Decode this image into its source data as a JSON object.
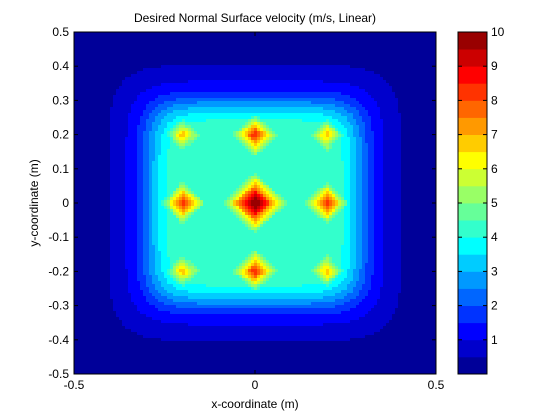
{
  "chart_data": {
    "type": "heatmap",
    "subtype": "filled-contour",
    "title": "Desired Normal Surface velocity (m/s, Linear)",
    "xlabel": "x-coordinate (m)",
    "ylabel": "y-coordinate (m)",
    "xlim": [
      -0.5,
      0.5
    ],
    "ylim": [
      -0.5,
      0.5
    ],
    "xticks": [
      -0.5,
      0,
      0.5
    ],
    "xtick_labels": [
      "-0.5",
      "0",
      "0.5"
    ],
    "yticks": [
      -0.5,
      -0.4,
      -0.3,
      -0.2,
      -0.1,
      0,
      0.1,
      0.2,
      0.3,
      0.4,
      0.5
    ],
    "ytick_labels": [
      "-0.5",
      "-0.4",
      "-0.3",
      "-0.2",
      "-0.1",
      "0",
      "0.1",
      "0.2",
      "0.3",
      "0.4",
      "0.5"
    ],
    "colorbar": {
      "clim": [
        0,
        10
      ],
      "ticks": [
        1,
        2,
        3,
        4,
        5,
        6,
        7,
        8,
        9,
        10
      ],
      "tick_labels": [
        "1",
        "2",
        "3",
        "4",
        "5",
        "6",
        "7",
        "8",
        "9",
        "10"
      ],
      "levels": 20,
      "colormap": "jet"
    },
    "grid": false,
    "peaks": [
      {
        "x": 0,
        "y": 0,
        "value": 10
      },
      {
        "x": -0.2,
        "y": 0,
        "value": 8
      },
      {
        "x": 0.2,
        "y": 0,
        "value": 8
      },
      {
        "x": 0,
        "y": 0.2,
        "value": 8
      },
      {
        "x": 0,
        "y": -0.2,
        "value": 8
      },
      {
        "x": -0.2,
        "y": 0.2,
        "value": 6.5
      },
      {
        "x": 0.2,
        "y": 0.2,
        "value": 6.5
      },
      {
        "x": -0.2,
        "y": -0.2,
        "value": 6.5
      },
      {
        "x": 0.2,
        "y": -0.2,
        "value": 6.5
      }
    ]
  }
}
